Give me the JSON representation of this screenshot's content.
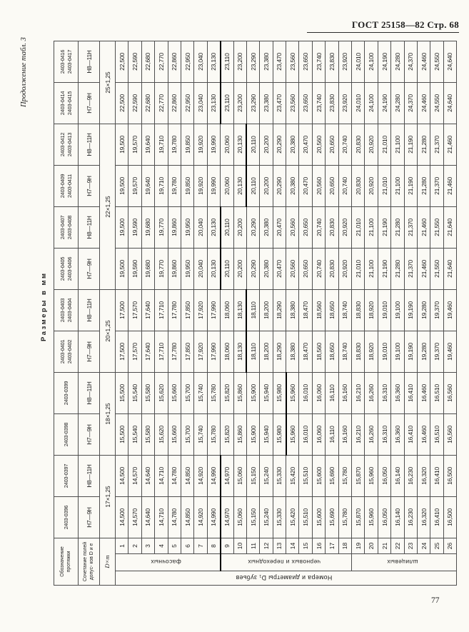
{
  "page": {
    "std_header": "ГОСТ 25158—82  Стр. 68",
    "continuation_note": "Продолжение табл. 3",
    "units_title": "Размеры в мм",
    "page_number": "77"
  },
  "table": {
    "corner_labels": {
      "designation": "Обозначение протяжки",
      "tolerance": "Сочетание полей допус- ков D и е",
      "size": "D×m"
    },
    "row_group_outer_label": "Номера и диаметры D₁ зубьев",
    "row_groups": [
      {
        "label": "фасочных",
        "from": 1,
        "to": 8
      },
      {
        "label": "черновых и переходных",
        "from": 9,
        "to": 18
      },
      {
        "label": "шлицевых",
        "from": 19,
        "to": 26
      }
    ],
    "size_groups": [
      {
        "label": "17×1,25",
        "span": 2
      },
      {
        "label": "18×1,25",
        "span": 2
      },
      {
        "label": "20×1,25",
        "span": 2
      },
      {
        "label": "22×1,25",
        "span": 4
      },
      {
        "label": "25×1,25",
        "span": 2
      }
    ],
    "columns": [
      {
        "designations": [
          "2403-0396"
        ],
        "tolerance": "Н7—9Н",
        "series": "d17"
      },
      {
        "designations": [
          "2403-0397"
        ],
        "tolerance": "Н8—11Н",
        "series": "d17"
      },
      {
        "designations": [
          "2403-0398"
        ],
        "tolerance": "Н7—9Н",
        "series": "d18"
      },
      {
        "designations": [
          "2403-0399"
        ],
        "tolerance": "Н8—11Н",
        "series": "d18"
      },
      {
        "designations": [
          "2403-0401",
          "2403-0402"
        ],
        "tolerance": "Н7—9Н",
        "series": "d20"
      },
      {
        "designations": [
          "2403-0403",
          "2403-0404"
        ],
        "tolerance": "Н8—11Н",
        "series": "d20"
      },
      {
        "designations": [
          "2403-0405",
          "2403-0406"
        ],
        "tolerance": "Н7—9Н",
        "series": "d22a"
      },
      {
        "designations": [
          "2403-0407",
          "2403-0408"
        ],
        "tolerance": "Н8—11Н",
        "series": "d22a"
      },
      {
        "designations": [
          "2403-0409",
          "2403-0411"
        ],
        "tolerance": "Н7—9Н",
        "series": "d22b"
      },
      {
        "designations": [
          "2403-0412",
          "2403-0413"
        ],
        "tolerance": "Н8—11Н",
        "series": "d22b"
      },
      {
        "designations": [
          "2403-0414",
          "2403-0415"
        ],
        "tolerance": "Н7—9Н",
        "series": "d25"
      },
      {
        "designations": [
          "2403-0416",
          "2403-0417"
        ],
        "tolerance": "Н8—11Н",
        "series": "d25"
      }
    ],
    "row_numbers": [
      1,
      2,
      3,
      4,
      5,
      6,
      7,
      8,
      9,
      10,
      11,
      12,
      13,
      14,
      15,
      16,
      17,
      18,
      19,
      20,
      21,
      22,
      23,
      24,
      25,
      26
    ],
    "series": {
      "d17": {
        "heavy_after": 8,
        "values": [
          "14,500",
          "14,570",
          "14,640",
          "14,710",
          "14,780",
          "14,850",
          "14,920",
          "14,990",
          "14,970",
          "15,060",
          "15,150",
          "15,240",
          "15,330",
          "15,420",
          "15,510",
          "15,600",
          "15,690",
          "15,780",
          "15,870",
          "15,960",
          "16,050",
          "16,140",
          "16,230",
          "16,320",
          "16,410",
          "16,500"
        ]
      },
      "d18": {
        "heavy_after": 13,
        "values": [
          "15,500",
          "15,540",
          "15,580",
          "15,620",
          "15,660",
          "15,700",
          "15,740",
          "15,780",
          "15,820",
          "15,860",
          "15,900",
          "15,940",
          "15,980",
          "15,960",
          "16,010",
          "16,060",
          "16,110",
          "16,160",
          "16,210",
          "16,260",
          "16,310",
          "16,360",
          "16,410",
          "16,460",
          "16,510",
          "16,560"
        ]
      },
      "d20": {
        "heavy_after": 10,
        "values": [
          "17,500",
          "17,570",
          "17,640",
          "17,710",
          "17,780",
          "17,850",
          "17,920",
          "17,990",
          "18,060",
          "18,130",
          "18,110",
          "18,200",
          "18,290",
          "18,380",
          "18,470",
          "18,560",
          "18,650",
          "18,740",
          "18,830",
          "18,920",
          "19,010",
          "19,100",
          "19,190",
          "19,280",
          "19,370",
          "19,460"
        ]
      },
      "d22a": {
        "heavy_after": 8,
        "values": [
          "19,500",
          "19,590",
          "19,680",
          "19,770",
          "19,860",
          "19,950",
          "20,040",
          "20,130",
          "20,110",
          "20,200",
          "20,290",
          "20,380",
          "20,470",
          "20,560",
          "20,650",
          "20,740",
          "20,830",
          "20,920",
          "21,010",
          "21,100",
          "21,190",
          "21,280",
          "21,370",
          "21,460",
          "21,550",
          "21,640"
        ]
      },
      "d22b": {
        "heavy_after": 10,
        "values": [
          "19,500",
          "19,570",
          "19,640",
          "19,710",
          "19,780",
          "19,850",
          "19,920",
          "19,990",
          "20,060",
          "20,130",
          "20,110",
          "20,200",
          "20,290",
          "20,380",
          "20,470",
          "20,560",
          "20,650",
          "20,740",
          "20,830",
          "20,920",
          "21,010",
          "21,100",
          "21,190",
          "21,280",
          "21,370",
          "21,460"
        ]
      },
      "d25": {
        "heavy_after": 8,
        "values": [
          "22,500",
          "22,590",
          "22,680",
          "22,770",
          "22,860",
          "22,950",
          "23,040",
          "23,130",
          "23,110",
          "23,200",
          "23,290",
          "23,380",
          "23,470",
          "23,560",
          "23,650",
          "23,740",
          "23,830",
          "23,920",
          "24,010",
          "24,100",
          "24,190",
          "24,280",
          "24,370",
          "24,460",
          "24,550",
          "24,640"
        ]
      }
    }
  }
}
